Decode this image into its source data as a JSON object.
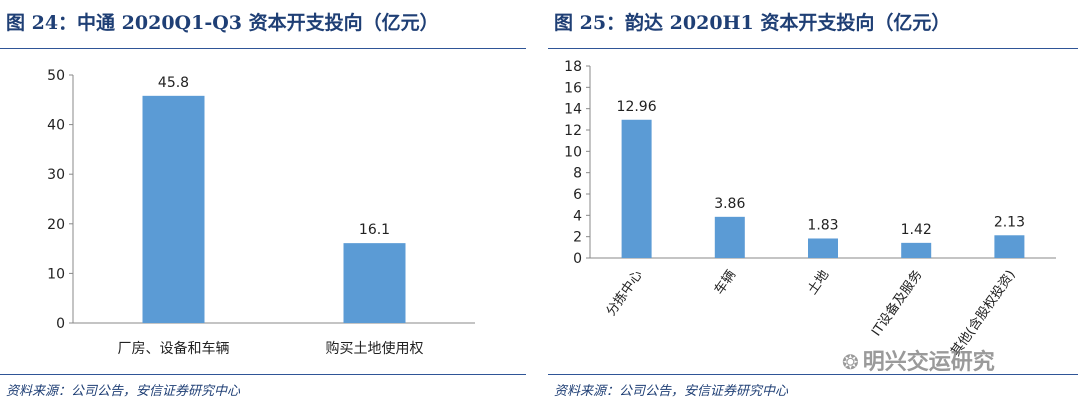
{
  "left": {
    "title": "图 24：中通 2020Q1-Q3 资本开支投向（亿元）",
    "source": "资料来源：公司公告，安信证券研究中心"
  },
  "right": {
    "title": "图 25：韵达 2020H1 资本开支投向（亿元）",
    "source": "资料来源：公司公告，安信证券研究中心"
  },
  "watermark": {
    "text": "明兴交运研究",
    "icon": "wechat-icon"
  },
  "colors": {
    "bar": "#5b9bd5",
    "title": "#1f3f75",
    "rule": "#2f5597"
  },
  "chart_data": [
    {
      "type": "bar",
      "categories": [
        "厂房、设备和车辆",
        "购买土地使用权"
      ],
      "values": [
        45.8,
        16.1
      ],
      "value_labels": [
        "45.8",
        "16.1"
      ],
      "ylim": [
        0,
        50
      ],
      "yticks": [
        0,
        10,
        20,
        30,
        40,
        50
      ],
      "grid": false,
      "xlabel": "",
      "ylabel": ""
    },
    {
      "type": "bar",
      "categories": [
        "分拣中心",
        "车辆",
        "土地",
        "IT设备及服务",
        "其他(含股权投资)"
      ],
      "values": [
        12.96,
        3.86,
        1.83,
        1.42,
        2.13
      ],
      "value_labels": [
        "12.96",
        "3.86",
        "1.83",
        "1.42",
        "2.13"
      ],
      "ylim": [
        0,
        18
      ],
      "yticks": [
        0,
        2,
        4,
        6,
        8,
        10,
        12,
        14,
        16,
        18
      ],
      "grid": false,
      "xlabel": "",
      "ylabel": ""
    }
  ]
}
